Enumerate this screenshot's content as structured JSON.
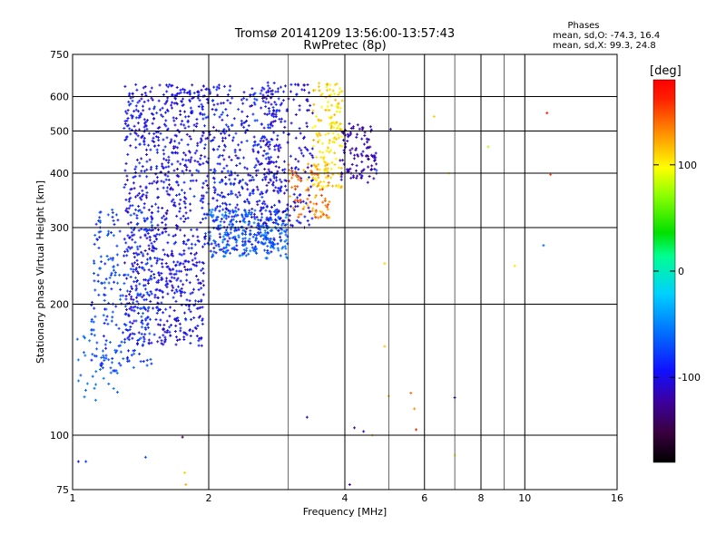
{
  "chart_data": {
    "type": "scatter",
    "title_line1": "Tromsø 20141209 13:56:00-13:57:43",
    "title_line2": "RwPretec (8p)",
    "stats": {
      "heading": "Phases",
      "line1": "mean, sd,O: -74.3, 16.4",
      "line2": "mean, sd,X:  99.3, 24.8"
    },
    "xlabel": "Frequency [MHz]",
    "ylabel": "Stationary phase Virtual Height [km]",
    "x_scale": "log",
    "y_scale": "log",
    "xlim": [
      1,
      16
    ],
    "ylim": [
      75,
      750
    ],
    "x_ticks": [
      1,
      2,
      4,
      6,
      8,
      10,
      16
    ],
    "x_minor": [
      3,
      5,
      7,
      9
    ],
    "y_ticks": [
      75,
      100,
      200,
      300,
      400,
      500,
      600,
      750
    ],
    "grid": true,
    "colorbar": {
      "label": "[deg]",
      "range": [
        -180,
        180
      ],
      "ticks": [
        100,
        0,
        -100
      ],
      "colormap": "jet-like (black-purple-blue-cyan-green-yellow-red)"
    },
    "clusters": [
      {
        "f": [
          1.3,
          1.95
        ],
        "h": [
          160,
          640
        ],
        "phase": [
          -115,
          -80
        ],
        "n": 900
      },
      {
        "f": [
          1.1,
          1.5
        ],
        "h": [
          140,
          330
        ],
        "phase": [
          -95,
          -60
        ],
        "n": 260
      },
      {
        "f": [
          1.95,
          2.9
        ],
        "h": [
          260,
          640
        ],
        "phase": [
          -115,
          -70
        ],
        "n": 520
      },
      {
        "f": [
          2.0,
          3.0
        ],
        "h": [
          255,
          330
        ],
        "phase": [
          -80,
          -45
        ],
        "n": 220
      },
      {
        "f": [
          2.6,
          3.4
        ],
        "h": [
          300,
          650
        ],
        "phase": [
          -120,
          -85
        ],
        "n": 220
      },
      {
        "f": [
          3.0,
          3.7
        ],
        "h": [
          315,
          420
        ],
        "phase": [
          110,
          160
        ],
        "n": 90
      },
      {
        "f": [
          3.4,
          3.95
        ],
        "h": [
          370,
          650
        ],
        "phase": [
          90,
          125
        ],
        "n": 160
      },
      {
        "f": [
          3.9,
          4.7
        ],
        "h": [
          380,
          520
        ],
        "phase": [
          -130,
          -105
        ],
        "n": 110
      },
      {
        "f": [
          1.02,
          1.3
        ],
        "h": [
          120,
          170
        ],
        "phase": [
          -70,
          -50
        ],
        "n": 30
      }
    ],
    "sparse_points": [
      {
        "f": 1.07,
        "h": 87,
        "phase": -80
      },
      {
        "f": 1.03,
        "h": 87,
        "phase": -95
      },
      {
        "f": 1.45,
        "h": 89,
        "phase": -70
      },
      {
        "f": 1.75,
        "h": 99,
        "phase": -150
      },
      {
        "f": 1.77,
        "h": 82,
        "phase": 110
      },
      {
        "f": 1.78,
        "h": 77,
        "phase": 120
      },
      {
        "f": 3.3,
        "h": 110,
        "phase": -110
      },
      {
        "f": 4.1,
        "h": 77,
        "phase": -120
      },
      {
        "f": 4.2,
        "h": 104,
        "phase": -125
      },
      {
        "f": 4.4,
        "h": 102,
        "phase": -115
      },
      {
        "f": 4.6,
        "h": 100,
        "phase": 120
      },
      {
        "f": 4.9,
        "h": 248,
        "phase": 110
      },
      {
        "f": 4.9,
        "h": 160,
        "phase": 115
      },
      {
        "f": 5.0,
        "h": 123,
        "phase": 120
      },
      {
        "f": 5.6,
        "h": 125,
        "phase": 140
      },
      {
        "f": 5.7,
        "h": 115,
        "phase": 130
      },
      {
        "f": 5.75,
        "h": 103,
        "phase": 160
      },
      {
        "f": 5.05,
        "h": 505,
        "phase": -110
      },
      {
        "f": 4.7,
        "h": 406,
        "phase": -70
      },
      {
        "f": 6.3,
        "h": 540,
        "phase": 110
      },
      {
        "f": 6.8,
        "h": 400,
        "phase": 105
      },
      {
        "f": 7.0,
        "h": 122,
        "phase": -120
      },
      {
        "f": 7.0,
        "h": 90,
        "phase": 100
      },
      {
        "f": 8.3,
        "h": 460,
        "phase": 80
      },
      {
        "f": 9.5,
        "h": 245,
        "phase": 105
      },
      {
        "f": 11.2,
        "h": 550,
        "phase": 170
      },
      {
        "f": 11.4,
        "h": 397,
        "phase": 150
      },
      {
        "f": 11.0,
        "h": 273,
        "phase": -60
      }
    ]
  }
}
